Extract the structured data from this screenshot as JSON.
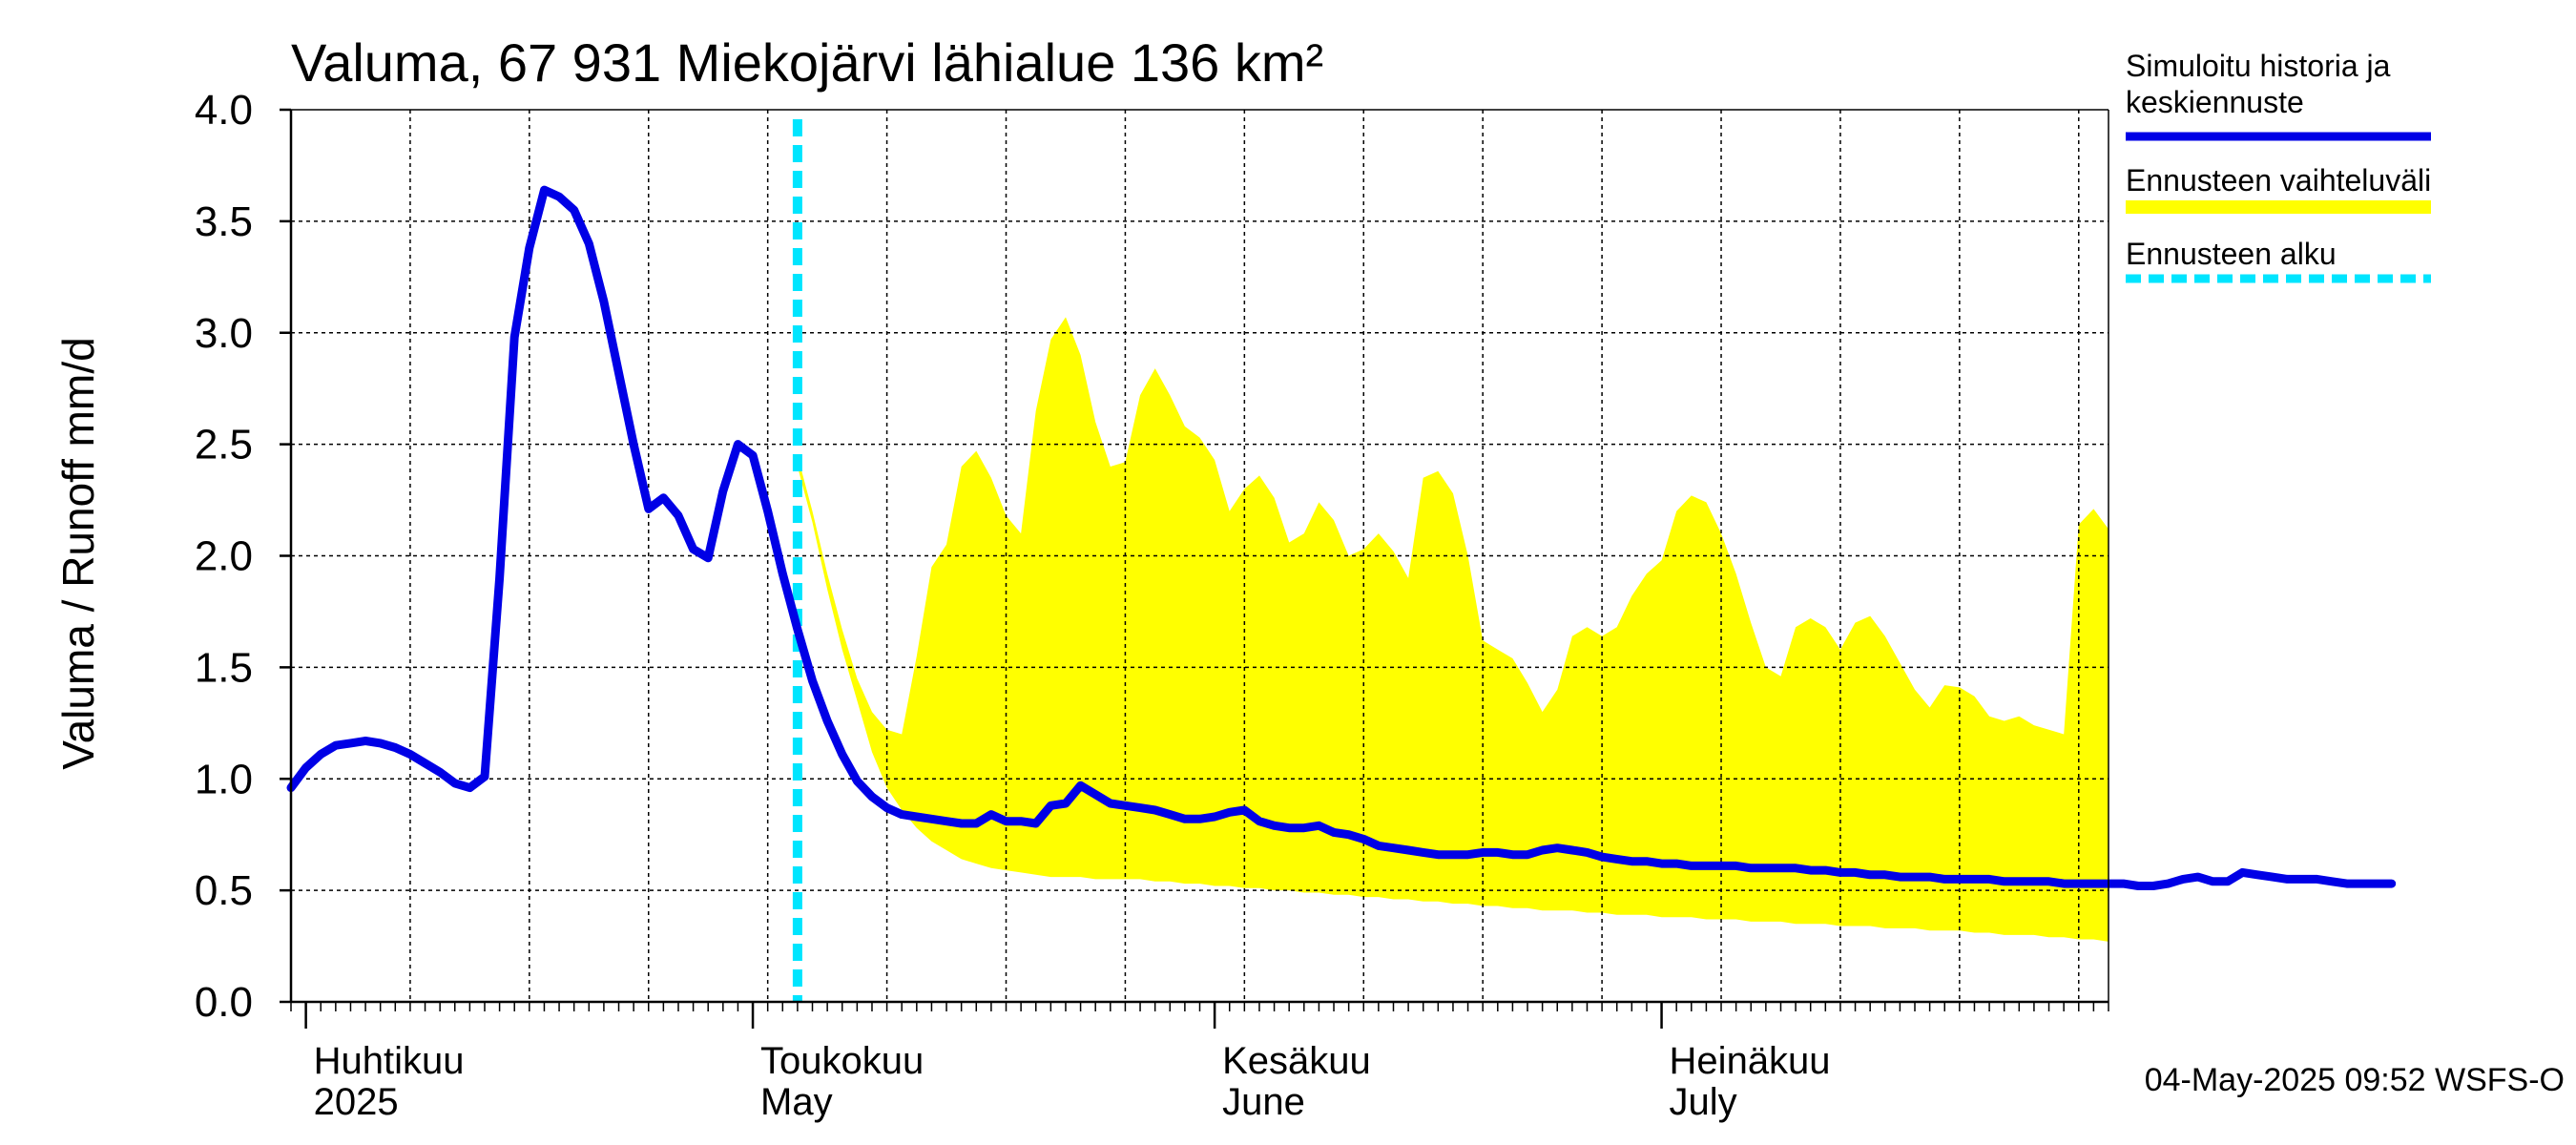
{
  "chart_data": {
    "type": "area",
    "title": "Valuma, 67 931 Miekojärvi lähialue 136 km²",
    "ylabel": "Valuma / Runoff    mm/d",
    "ylim": [
      0.0,
      4.0
    ],
    "yticks": [
      "0.0",
      "0.5",
      "1.0",
      "1.5",
      "2.0",
      "2.5",
      "3.0",
      "3.5",
      "4.0"
    ],
    "xlim": [
      "2025-03-31",
      "2025-07-31"
    ],
    "months": [
      {
        "date": "2025-04-01",
        "line1": "Huhtikuu",
        "line2": "2025"
      },
      {
        "date": "2025-05-01",
        "line1": "Toukokuu",
        "line2": "May"
      },
      {
        "date": "2025-06-01",
        "line1": "Kesäkuu",
        "line2": "June"
      },
      {
        "date": "2025-07-01",
        "line1": "Heinäkuu",
        "line2": "July"
      }
    ],
    "forecast_start": "2025-05-04",
    "legend": {
      "position": "right",
      "items": [
        {
          "label_lines": [
            "Simuloitu historia ja",
            "keskiennuste"
          ],
          "color": "#0000e6",
          "style": "solid"
        },
        {
          "label_lines": [
            "Ennusteen vaihteluväli"
          ],
          "color": "#ffff00",
          "style": "band"
        },
        {
          "label_lines": [
            "Ennusteen alku"
          ],
          "color": "#00e5ff",
          "style": "dashed"
        }
      ]
    },
    "footer": "04-May-2025 09:52 WSFS-O",
    "colors": {
      "series": "#0000e6",
      "band": "#ffff00",
      "forecast_start": "#00e5ff",
      "grid": "#000000"
    },
    "series": [
      {
        "name": "Simuloitu historia ja keskiennuste",
        "start_date": "2025-03-31",
        "values": [
          0.96,
          1.05,
          1.11,
          1.15,
          1.16,
          1.17,
          1.16,
          1.14,
          1.11,
          1.07,
          1.03,
          0.98,
          0.96,
          1.01,
          1.9,
          2.98,
          3.38,
          3.64,
          3.61,
          3.55,
          3.4,
          3.14,
          2.82,
          2.5,
          2.21,
          2.26,
          2.18,
          2.03,
          1.99,
          2.29,
          2.5,
          2.45,
          2.2,
          1.92,
          1.67,
          1.44,
          1.26,
          1.11,
          0.99,
          0.92,
          0.87,
          0.84,
          0.83,
          0.82,
          0.81,
          0.8,
          0.8,
          0.84,
          0.81,
          0.81,
          0.8,
          0.88,
          0.89,
          0.97,
          0.93,
          0.89,
          0.88,
          0.87,
          0.86,
          0.84,
          0.82,
          0.82,
          0.83,
          0.85,
          0.86,
          0.81,
          0.79,
          0.78,
          0.78,
          0.79,
          0.76,
          0.75,
          0.73,
          0.7,
          0.69,
          0.68,
          0.67,
          0.66,
          0.66,
          0.66,
          0.67,
          0.67,
          0.66,
          0.66,
          0.68,
          0.69,
          0.68,
          0.67,
          0.65,
          0.64,
          0.63,
          0.63,
          0.62,
          0.62,
          0.61,
          0.61,
          0.61,
          0.61,
          0.6,
          0.6,
          0.6,
          0.6,
          0.59,
          0.59,
          0.58,
          0.58,
          0.57,
          0.57,
          0.56,
          0.56,
          0.56,
          0.55,
          0.55,
          0.55,
          0.55,
          0.54,
          0.54,
          0.54,
          0.54,
          0.53,
          0.53,
          0.53,
          0.53,
          0.53,
          0.52,
          0.52,
          0.53,
          0.55,
          0.56,
          0.54,
          0.54,
          0.58,
          0.57,
          0.56,
          0.55,
          0.55,
          0.55,
          0.54,
          0.53,
          0.53,
          0.53,
          0.53
        ]
      }
    ],
    "band": {
      "name": "Ennusteen vaihteluväli",
      "start_date": "2025-05-04",
      "upper": [
        2.45,
        2.2,
        1.92,
        1.67,
        1.45,
        1.3,
        1.22,
        1.2,
        1.55,
        1.95,
        2.05,
        2.4,
        2.47,
        2.35,
        2.18,
        2.1,
        2.65,
        2.97,
        3.07,
        2.9,
        2.6,
        2.4,
        2.42,
        2.72,
        2.84,
        2.72,
        2.58,
        2.53,
        2.43,
        2.2,
        2.3,
        2.36,
        2.26,
        2.06,
        2.1,
        2.24,
        2.16,
        2.0,
        2.03,
        2.1,
        2.02,
        1.9,
        2.35,
        2.38,
        2.28,
        2.0,
        1.62,
        1.58,
        1.54,
        1.43,
        1.3,
        1.4,
        1.64,
        1.68,
        1.64,
        1.68,
        1.82,
        1.92,
        1.98,
        2.2,
        2.27,
        2.24,
        2.1,
        1.92,
        1.7,
        1.5,
        1.46,
        1.68,
        1.72,
        1.68,
        1.58,
        1.7,
        1.73,
        1.64,
        1.52,
        1.4,
        1.32,
        1.42,
        1.41,
        1.37,
        1.28,
        1.26,
        1.28,
        1.24,
        1.22,
        1.2,
        2.14,
        2.21,
        2.12
      ],
      "lower": [
        2.4,
        2.15,
        1.85,
        1.58,
        1.35,
        1.12,
        0.96,
        0.86,
        0.78,
        0.72,
        0.68,
        0.64,
        0.62,
        0.6,
        0.59,
        0.58,
        0.57,
        0.56,
        0.56,
        0.56,
        0.55,
        0.55,
        0.55,
        0.55,
        0.54,
        0.54,
        0.53,
        0.53,
        0.52,
        0.52,
        0.51,
        0.51,
        0.5,
        0.5,
        0.49,
        0.49,
        0.48,
        0.48,
        0.47,
        0.47,
        0.46,
        0.46,
        0.45,
        0.45,
        0.44,
        0.44,
        0.43,
        0.43,
        0.42,
        0.42,
        0.41,
        0.41,
        0.41,
        0.4,
        0.4,
        0.39,
        0.39,
        0.39,
        0.38,
        0.38,
        0.38,
        0.37,
        0.37,
        0.37,
        0.36,
        0.36,
        0.36,
        0.35,
        0.35,
        0.35,
        0.34,
        0.34,
        0.34,
        0.33,
        0.33,
        0.33,
        0.32,
        0.32,
        0.32,
        0.31,
        0.31,
        0.3,
        0.3,
        0.3,
        0.29,
        0.29,
        0.28,
        0.28,
        0.27
      ]
    }
  }
}
